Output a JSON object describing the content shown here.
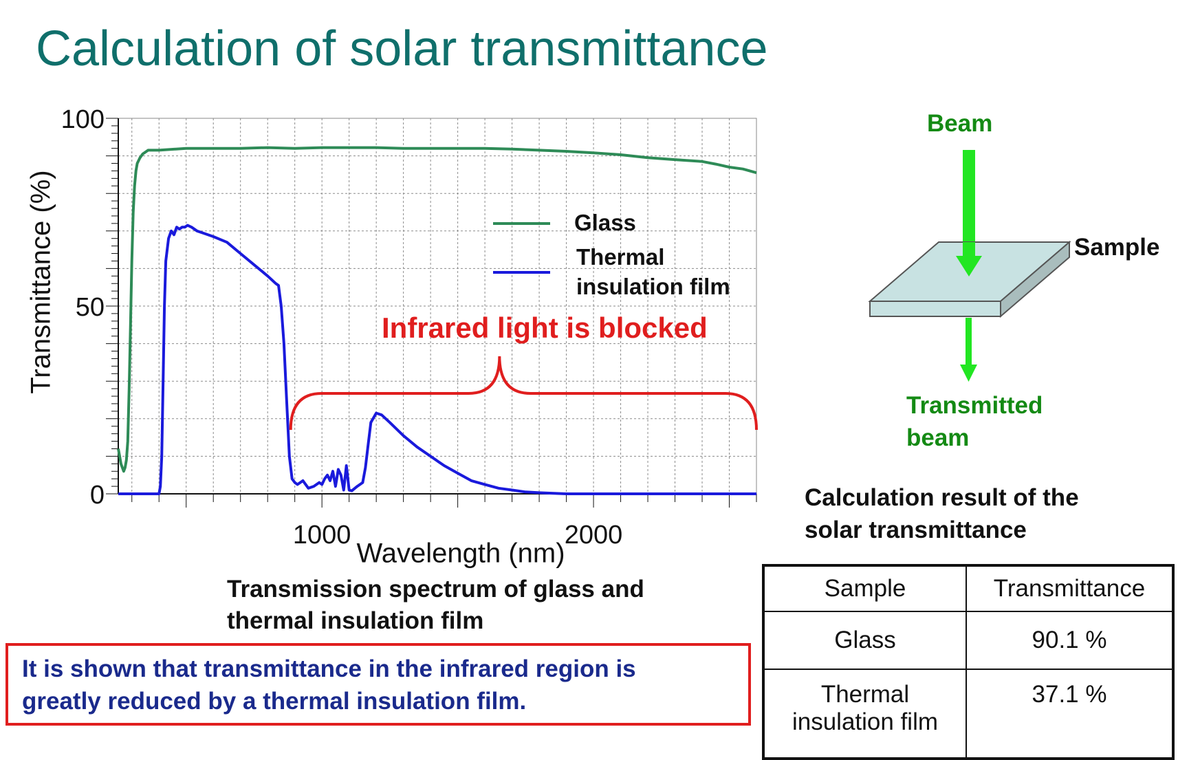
{
  "title": "Calculation of solar transmittance",
  "chart_data": {
    "type": "line",
    "xlabel": "Wavelength (nm)",
    "ylabel": "Transmittance (%)",
    "xlim": [
      250,
      2600
    ],
    "ylim": [
      0,
      100
    ],
    "x_ticks": [
      1000,
      2000
    ],
    "y_ticks": [
      0,
      50,
      100
    ],
    "grid": true,
    "legend_position": "upper-right",
    "series": [
      {
        "name": "Glass",
        "color": "#2e8b57",
        "points": [
          [
            250,
            12
          ],
          [
            255,
            10
          ],
          [
            260,
            8
          ],
          [
            265,
            7
          ],
          [
            270,
            6
          ],
          [
            275,
            7
          ],
          [
            280,
            9
          ],
          [
            285,
            14
          ],
          [
            290,
            28
          ],
          [
            295,
            45
          ],
          [
            300,
            62
          ],
          [
            305,
            75
          ],
          [
            310,
            82
          ],
          [
            315,
            86
          ],
          [
            320,
            88
          ],
          [
            330,
            89.5
          ],
          [
            340,
            90.5
          ],
          [
            350,
            91
          ],
          [
            360,
            91.5
          ],
          [
            400,
            91.5
          ],
          [
            500,
            92
          ],
          [
            600,
            92
          ],
          [
            700,
            92
          ],
          [
            800,
            92.2
          ],
          [
            900,
            92
          ],
          [
            1000,
            92.2
          ],
          [
            1100,
            92.2
          ],
          [
            1200,
            92.2
          ],
          [
            1300,
            92
          ],
          [
            1400,
            92
          ],
          [
            1500,
            92
          ],
          [
            1600,
            92
          ],
          [
            1700,
            91.8
          ],
          [
            1800,
            91.5
          ],
          [
            1900,
            91.2
          ],
          [
            2000,
            90.8
          ],
          [
            2100,
            90.3
          ],
          [
            2200,
            89.5
          ],
          [
            2300,
            89
          ],
          [
            2400,
            88.5
          ],
          [
            2450,
            87.8
          ],
          [
            2500,
            87
          ],
          [
            2550,
            86.5
          ],
          [
            2600,
            85.5
          ]
        ]
      },
      {
        "name": "Thermal insulation film",
        "color": "#1a1adc",
        "points": [
          [
            250,
            0
          ],
          [
            400,
            0
          ],
          [
            405,
            2
          ],
          [
            410,
            10
          ],
          [
            415,
            30
          ],
          [
            420,
            50
          ],
          [
            425,
            62
          ],
          [
            435,
            68
          ],
          [
            445,
            70
          ],
          [
            455,
            69
          ],
          [
            465,
            71
          ],
          [
            475,
            70.5
          ],
          [
            485,
            71
          ],
          [
            495,
            71
          ],
          [
            505,
            71.5
          ],
          [
            520,
            71
          ],
          [
            540,
            70
          ],
          [
            560,
            69.5
          ],
          [
            600,
            68.5
          ],
          [
            650,
            67
          ],
          [
            700,
            64
          ],
          [
            750,
            61
          ],
          [
            800,
            58
          ],
          [
            830,
            56
          ],
          [
            840,
            55.5
          ],
          [
            850,
            50
          ],
          [
            860,
            40
          ],
          [
            870,
            25
          ],
          [
            880,
            10
          ],
          [
            890,
            4
          ],
          [
            900,
            3
          ],
          [
            910,
            2.5
          ],
          [
            920,
            3
          ],
          [
            930,
            3.5
          ],
          [
            950,
            1.5
          ],
          [
            970,
            2
          ],
          [
            990,
            3
          ],
          [
            1000,
            2.5
          ],
          [
            1010,
            4
          ],
          [
            1020,
            5
          ],
          [
            1030,
            3.5
          ],
          [
            1040,
            6
          ],
          [
            1050,
            2
          ],
          [
            1060,
            6.5
          ],
          [
            1070,
            5
          ],
          [
            1080,
            1
          ],
          [
            1090,
            7.5
          ],
          [
            1100,
            1
          ],
          [
            1110,
            0.8
          ],
          [
            1130,
            2
          ],
          [
            1150,
            3
          ],
          [
            1160,
            7
          ],
          [
            1170,
            13
          ],
          [
            1180,
            19
          ],
          [
            1200,
            21.5
          ],
          [
            1220,
            21
          ],
          [
            1250,
            19
          ],
          [
            1300,
            15.5
          ],
          [
            1350,
            12.5
          ],
          [
            1400,
            10
          ],
          [
            1450,
            7.5
          ],
          [
            1500,
            5.5
          ],
          [
            1550,
            3.5
          ],
          [
            1600,
            2.5
          ],
          [
            1650,
            1.5
          ],
          [
            1700,
            1
          ],
          [
            1750,
            0.5
          ],
          [
            1800,
            0.3
          ],
          [
            1900,
            0
          ],
          [
            2600,
            0
          ]
        ]
      }
    ],
    "annotation": "Infrared light is blocked",
    "annotation_range": [
      900,
      2600
    ],
    "legend": {
      "glass": "Glass",
      "film_line1": "Thermal",
      "film_line2": "insulation film"
    }
  },
  "caption": {
    "line1": "Transmission spectrum of glass and",
    "line2": "thermal insulation film"
  },
  "note": {
    "line1": "It is shown that transmittance in the infrared region is",
    "line2": "greatly reduced by a thermal insulation film."
  },
  "diagram": {
    "beam": "Beam",
    "sample": "Sample",
    "transmitted_line1": "Transmitted",
    "transmitted_line2": "beam",
    "beam_color": "#22e622",
    "sample_top_color": "#c8e2e2",
    "sample_side_color": "#a9bdbd"
  },
  "results": {
    "title_line1": "Calculation result of the",
    "title_line2": "solar transmittance",
    "headers": [
      "Sample",
      "Transmittance"
    ],
    "rows": [
      {
        "sample": "Glass",
        "value": "90.1 %"
      },
      {
        "sample_line1": "Thermal",
        "sample_line2": "insulation film",
        "value": "37.1 %"
      }
    ]
  }
}
